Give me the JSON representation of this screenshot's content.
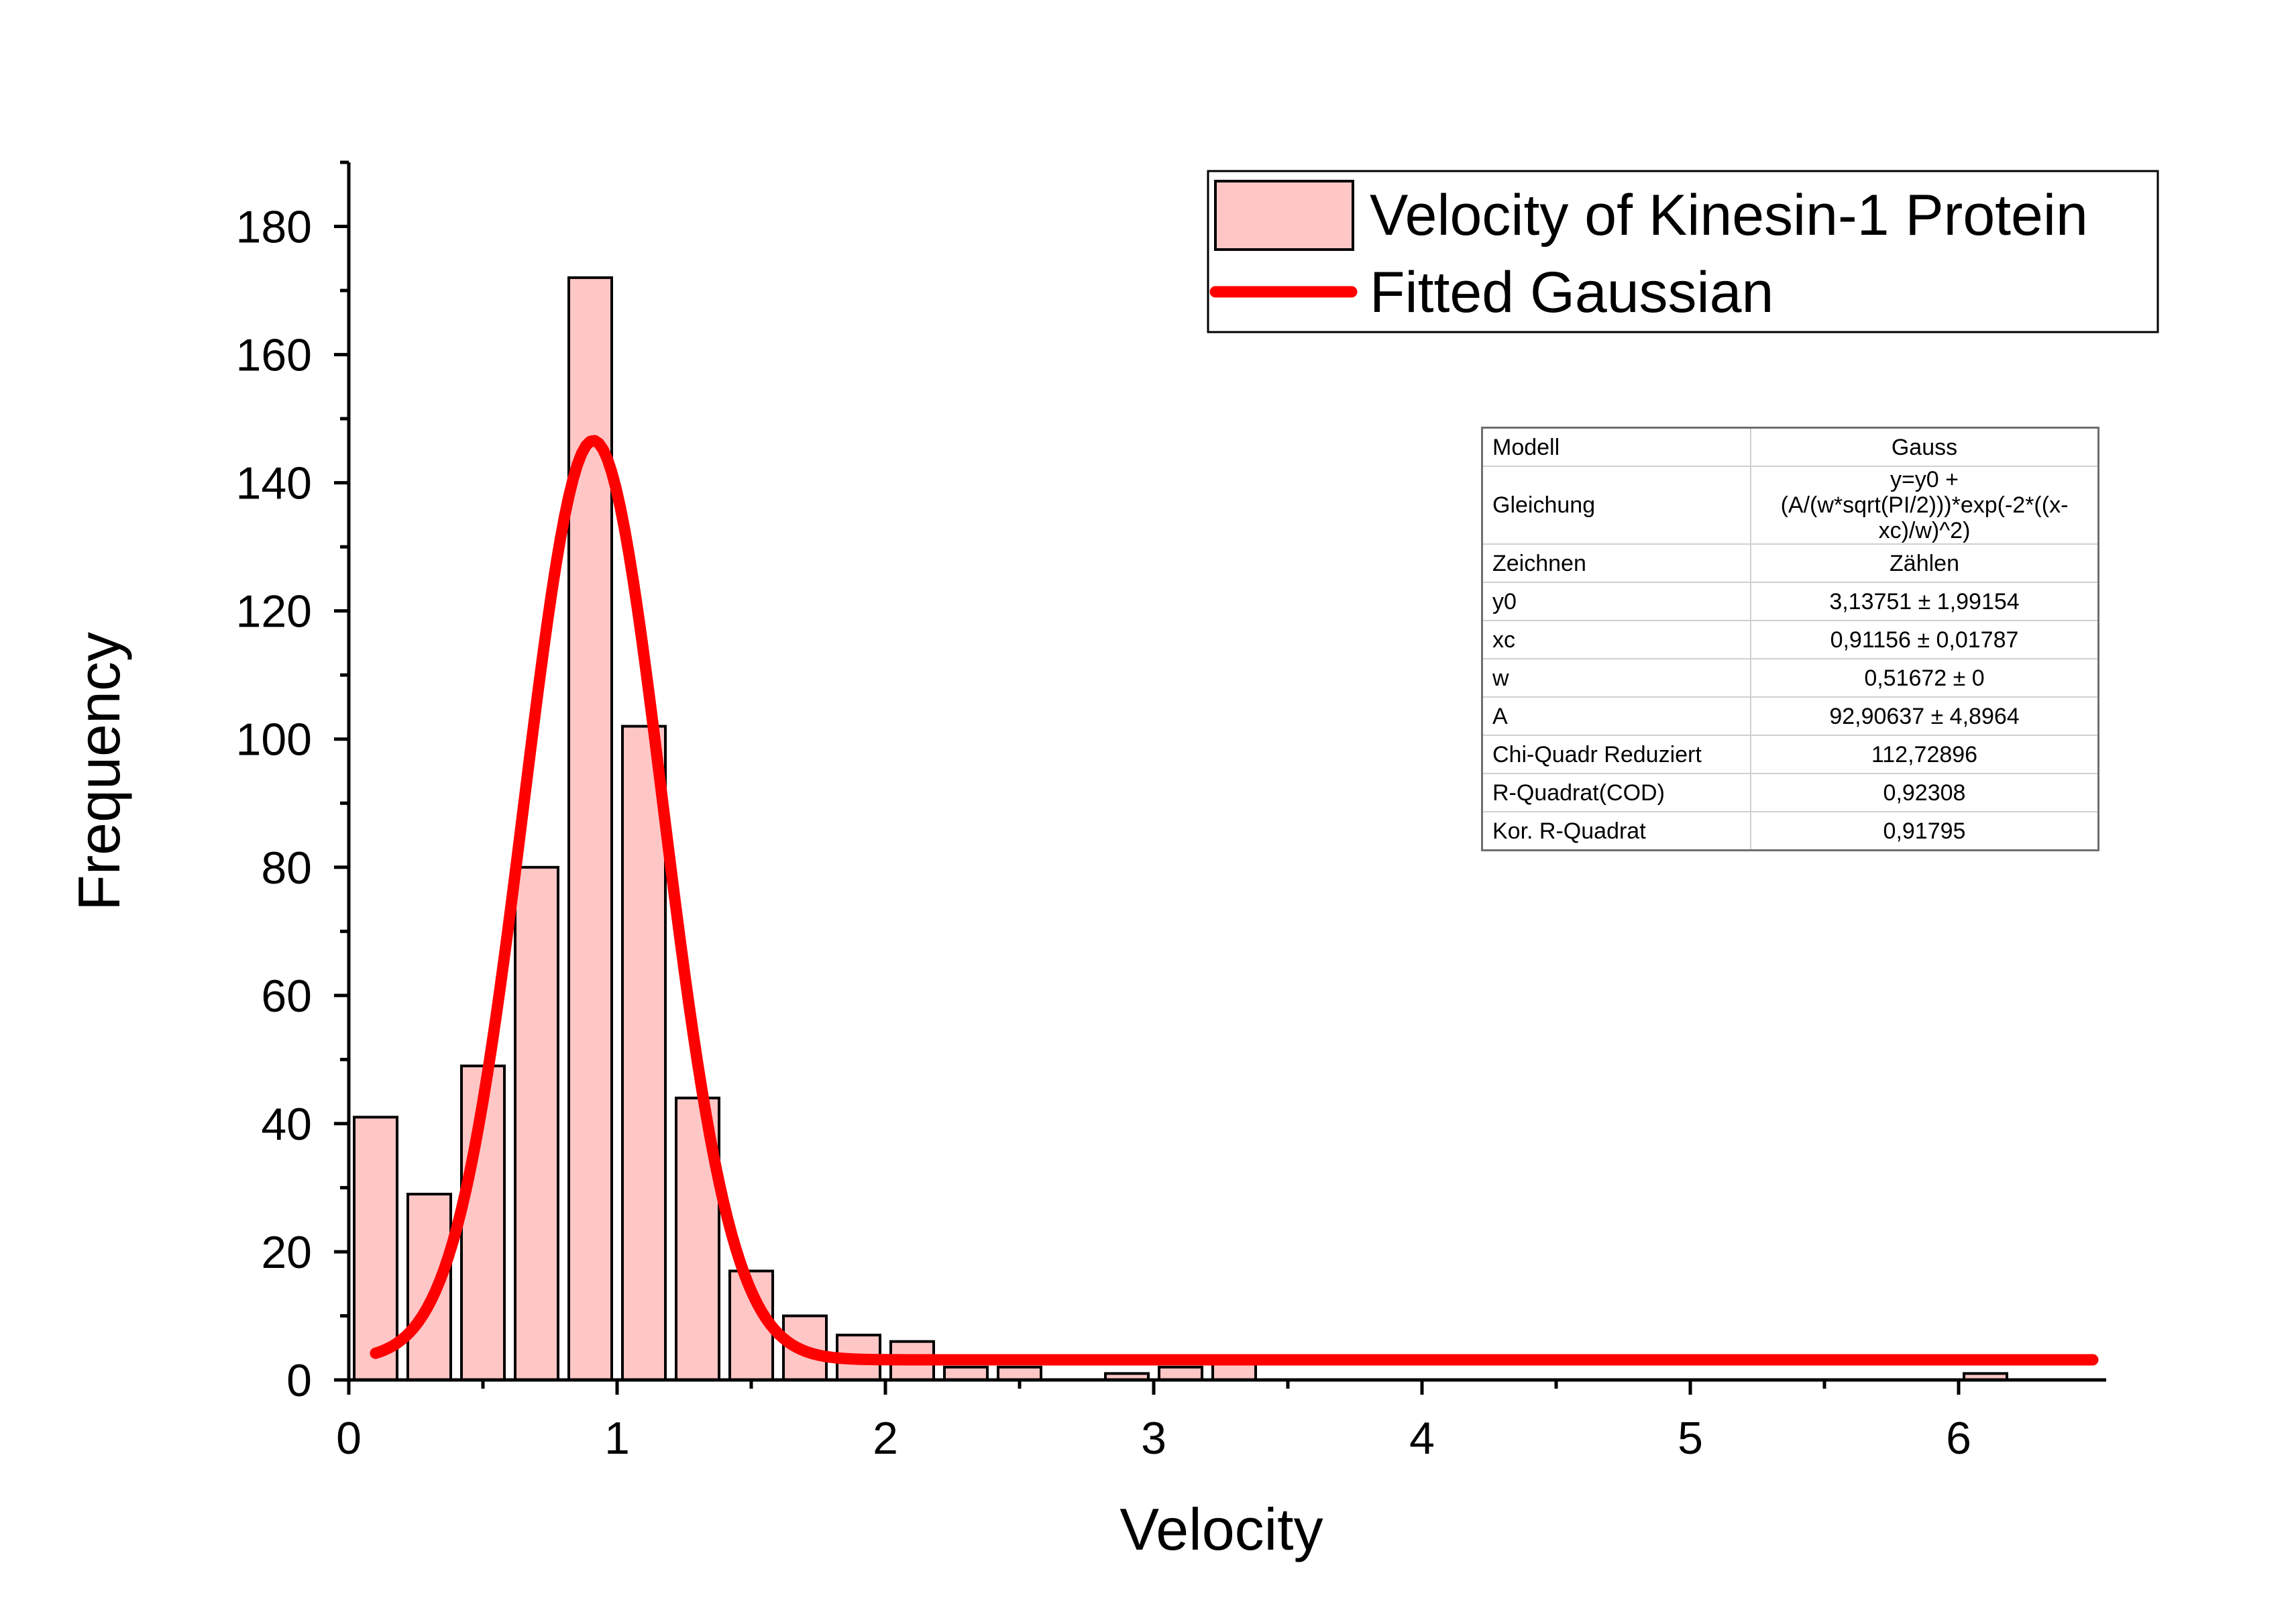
{
  "chart_data": {
    "type": "bar",
    "xlabel": "Velocity",
    "ylabel": "Frequency",
    "xlim": [
      0,
      6.5
    ],
    "ylim": [
      0,
      190
    ],
    "x_ticks": [
      0,
      1,
      2,
      3,
      4,
      5,
      6
    ],
    "y_ticks": [
      0,
      20,
      40,
      60,
      80,
      100,
      120,
      140,
      160,
      180
    ],
    "bin_width": 0.2,
    "bin_left_edges": [
      0,
      0.2,
      0.4,
      0.6,
      0.8,
      1.0,
      1.2,
      1.4,
      1.6,
      1.8,
      2.0,
      2.2,
      2.4,
      2.6,
      2.8,
      3.0,
      3.2,
      3.4,
      3.6,
      3.8,
      4.0,
      4.2,
      4.4,
      4.6,
      4.8,
      5.0,
      5.2,
      5.4,
      5.6,
      5.8,
      6.0
    ],
    "series": [
      {
        "name": "Velocity of Kinesin-1 Protein",
        "values": [
          41,
          29,
          49,
          80,
          172,
          102,
          44,
          17,
          10,
          7,
          6,
          2,
          2,
          0,
          1,
          2,
          3,
          0,
          0,
          0,
          0,
          0,
          0,
          0,
          0,
          0,
          0,
          0,
          0,
          0,
          1
        ],
        "color": "#ffc6c6"
      },
      {
        "name": "Fitted Gaussian",
        "type": "line",
        "color": "#ff0000",
        "x_range": [
          0.1,
          6.5
        ],
        "params": {
          "y0": 3.13751,
          "xc": 0.91156,
          "w": 0.51672,
          "A": 92.90637
        }
      }
    ],
    "legend_position": "top-right"
  },
  "stats_table": [
    {
      "key": "Modell",
      "value": "Gauss"
    },
    {
      "key": "Gleichung",
      "value": "y=y0 + (A/(w*sqrt(PI/2)))*exp(-2*((x-xc)/w)^2)"
    },
    {
      "key": "Zeichnen",
      "value": "Zählen"
    },
    {
      "key": "y0",
      "value": "3,13751 ± 1,99154"
    },
    {
      "key": "xc",
      "value": "0,91156 ± 0,01787"
    },
    {
      "key": "w",
      "value": "0,51672 ± 0"
    },
    {
      "key": "A",
      "value": "92,90637 ± 4,8964"
    },
    {
      "key": "Chi-Quadr Reduziert",
      "value": "112,72896"
    },
    {
      "key": "R-Quadrat(COD)",
      "value": "0,92308"
    },
    {
      "key": "Kor. R-Quadrat",
      "value": "0,91795"
    }
  ]
}
